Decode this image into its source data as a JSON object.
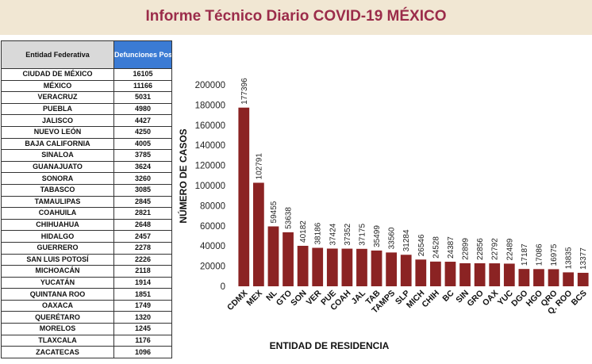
{
  "header": {
    "title": "Informe Técnico Diario COVID-19 MÉXICO"
  },
  "table": {
    "headers": [
      "Entidad Federativa",
      "Defunciones Positivas"
    ],
    "rows": [
      [
        "CIUDAD DE MÉXICO",
        "16105"
      ],
      [
        "MÉXICO",
        "11166"
      ],
      [
        "VERACRUZ",
        "5031"
      ],
      [
        "PUEBLA",
        "4980"
      ],
      [
        "JALISCO",
        "4427"
      ],
      [
        "NUEVO LEÓN",
        "4250"
      ],
      [
        "BAJA CALIFORNIA",
        "4005"
      ],
      [
        "SINALOA",
        "3785"
      ],
      [
        "GUANAJUATO",
        "3624"
      ],
      [
        "SONORA",
        "3260"
      ],
      [
        "TABASCO",
        "3085"
      ],
      [
        "TAMAULIPAS",
        "2845"
      ],
      [
        "COAHUILA",
        "2821"
      ],
      [
        "CHIHUAHUA",
        "2648"
      ],
      [
        "HIDALGO",
        "2457"
      ],
      [
        "GUERRERO",
        "2278"
      ],
      [
        "SAN LUIS POTOSÍ",
        "2226"
      ],
      [
        "MICHOACÁN",
        "2118"
      ],
      [
        "YUCATÁN",
        "1914"
      ],
      [
        "QUINTANA ROO",
        "1851"
      ],
      [
        "OAXACA",
        "1749"
      ],
      [
        "QUERÉTARO",
        "1320"
      ],
      [
        "MORELOS",
        "1245"
      ],
      [
        "TLAXCALA",
        "1176"
      ],
      [
        "ZACATECAS",
        "1096"
      ]
    ]
  },
  "chart_data": {
    "type": "bar",
    "xlabel": "ENTIDAD DE RESIDENCIA",
    "ylabel": "NÚMERO DE CASOS",
    "ylim": [
      0,
      200000
    ],
    "yticks": [
      0,
      20000,
      40000,
      60000,
      80000,
      100000,
      120000,
      140000,
      160000,
      180000,
      200000
    ],
    "grid": false,
    "bar_color": "#8b2323",
    "categories": [
      "CDMX",
      "MEX",
      "NL",
      "GTO",
      "SON",
      "VER",
      "PUE",
      "COAH",
      "JAL",
      "TAB",
      "TAMPS",
      "SLP",
      "MICH",
      "CHIH",
      "BC",
      "SIN",
      "GRO",
      "OAX",
      "YUC",
      "DGO",
      "HGO",
      "QRO",
      "Q. ROO",
      "BCS"
    ],
    "values": [
      177396,
      102791,
      59455,
      53638,
      40182,
      38186,
      37424,
      37352,
      37175,
      35499,
      33560,
      31284,
      26546,
      24528,
      24387,
      22899,
      22856,
      22792,
      22489,
      17187,
      17086,
      16975,
      13835,
      13377
    ]
  }
}
